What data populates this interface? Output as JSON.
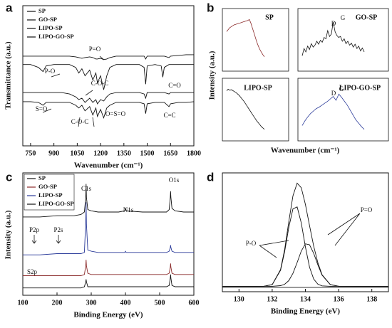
{
  "chart_data": [
    {
      "type": "line",
      "label": "a",
      "ylabel": "Transmittance (a.u.)",
      "xlabel": "Wavenumber (cm⁻¹)",
      "xlim": [
        700,
        1800
      ],
      "xticks": [
        750,
        900,
        1050,
        1200,
        1350,
        1500,
        1650,
        1800
      ],
      "ylim": [
        0,
        100
      ],
      "x": [
        700,
        750,
        800,
        830,
        850,
        900,
        950,
        1000,
        1040,
        1060,
        1080,
        1100,
        1130,
        1150,
        1170,
        1180,
        1200,
        1220,
        1240,
        1260,
        1300,
        1350,
        1400,
        1450,
        1480,
        1490,
        1500,
        1550,
        1590,
        1600,
        1610,
        1640,
        1650,
        1700,
        1750,
        1800
      ],
      "series": [
        {
          "name": "SP",
          "color": "#111111",
          "values": [
            64,
            64,
            64,
            64,
            64,
            64,
            64,
            64,
            63.5,
            63,
            62.5,
            63,
            63.5,
            63,
            62,
            62,
            62.5,
            61.5,
            62,
            63,
            64,
            64,
            64,
            64,
            64,
            62,
            64,
            64,
            64,
            64,
            64,
            63,
            64,
            64.5,
            65,
            65
          ]
        },
        {
          "name": "GO-SP",
          "color": "#111111",
          "values": [
            58,
            58,
            56,
            53,
            57,
            58,
            58,
            58,
            56,
            52,
            55,
            50,
            54,
            47,
            52,
            45,
            50,
            40,
            50,
            56,
            58,
            58,
            58,
            58,
            56,
            44,
            57,
            58,
            57,
            49,
            56,
            58,
            58,
            58,
            58,
            58
          ]
        },
        {
          "name": "LIPO-SP",
          "color": "#111111",
          "values": [
            38,
            38,
            38,
            38,
            38,
            38,
            38,
            37,
            35,
            33,
            34,
            31,
            34,
            31,
            33,
            30,
            33,
            32,
            35,
            37,
            38,
            38,
            38,
            38,
            37,
            34,
            38,
            38,
            38,
            38,
            38,
            37,
            38,
            38,
            38,
            38
          ]
        },
        {
          "name": "LIPO-GO-SP",
          "color": "#111111",
          "values": [
            31.5,
            31.5,
            31,
            29,
            31,
            31,
            31,
            31,
            29,
            27,
            29,
            25,
            28,
            22,
            27,
            21,
            26,
            20,
            27,
            29,
            31,
            31,
            31,
            31,
            30,
            23,
            30,
            31,
            31,
            31,
            31,
            28,
            30,
            31,
            31,
            31.5
          ]
        }
      ],
      "annotations": [
        "P=O",
        "P-O",
        "C-O-C",
        "C=O",
        "S=O",
        "C-O-C",
        "O=S=O",
        "C=C"
      ]
    },
    {
      "type": "line",
      "label": "b",
      "ylabel": "Intensity (a.u.)",
      "xlabel": "Wavenumber (cm⁻¹)",
      "ylim": [
        0,
        100
      ],
      "series": [
        {
          "name": "SP",
          "color": "#8b2a2a",
          "values": [
            70,
            74,
            78,
            80,
            82,
            84,
            85,
            86,
            87,
            88,
            89,
            90,
            91,
            92,
            93,
            95,
            88,
            78,
            68,
            58,
            48,
            40,
            33,
            27,
            22,
            18
          ]
        },
        {
          "name": "GO-SP",
          "color": "#111111",
          "values": [
            20,
            35,
            28,
            40,
            33,
            45,
            38,
            42,
            50,
            44,
            52,
            48,
            58,
            55,
            72,
            60,
            65,
            90,
            70,
            62,
            58,
            60,
            50,
            55,
            45,
            50,
            42,
            46,
            38,
            44,
            35,
            40,
            30,
            36,
            28
          ]
        },
        {
          "name": "LIPO-SP",
          "color": "#111111",
          "values": [
            92,
            95,
            93,
            94,
            92,
            90,
            88,
            85,
            82,
            78,
            74,
            70,
            65,
            60,
            55,
            50,
            45,
            40,
            35,
            30,
            26,
            22,
            18,
            15,
            12
          ]
        },
        {
          "name": "LIPO-GO-SP",
          "color": "#2a3a99",
          "values": [
            20,
            30,
            38,
            45,
            50,
            55,
            58,
            62,
            66,
            70,
            75,
            80,
            72,
            85,
            78,
            70,
            62,
            52,
            42,
            32,
            25,
            18,
            12
          ]
        }
      ],
      "annotations": [
        "D",
        "G",
        "D",
        "G"
      ]
    },
    {
      "type": "line",
      "label": "c",
      "ylabel": "Intensity (a.u.)",
      "xlabel": "Binding Energy (eV)",
      "xlim": [
        100,
        600
      ],
      "xticks": [
        100,
        200,
        300,
        400,
        500,
        600
      ],
      "ylim": [
        0,
        100
      ],
      "x": [
        100,
        150,
        200,
        250,
        270,
        280,
        284,
        285,
        286,
        290,
        300,
        320,
        380,
        398,
        400,
        402,
        450,
        500,
        520,
        528,
        531,
        532,
        533,
        536,
        545,
        570,
        600
      ],
      "series": [
        {
          "name": "SP",
          "color": "#111111",
          "values": [
            6,
            6,
            6,
            6,
            6,
            7,
            11,
            13,
            11,
            7,
            7,
            7,
            7,
            7,
            7,
            7,
            7,
            7,
            7,
            8,
            14,
            17,
            14,
            8,
            7,
            7,
            7
          ]
        },
        {
          "name": "GO-SP",
          "color": "#8b2a2a",
          "values": [
            16,
            16,
            16,
            16,
            16,
            17,
            24,
            29,
            24,
            18,
            17,
            17,
            17,
            17,
            17,
            17,
            17,
            17,
            17,
            18,
            23,
            26,
            23,
            18,
            17,
            17,
            17
          ]
        },
        {
          "name": "LIPO-SP",
          "color": "#2a3a99",
          "values": [
            33,
            33,
            34,
            34,
            34,
            35,
            60,
            76,
            58,
            37,
            36,
            35,
            35,
            35,
            36,
            35,
            35,
            35,
            35,
            36,
            39,
            41,
            39,
            36,
            35,
            35,
            35
          ]
        },
        {
          "name": "LIPO-GO-SP",
          "color": "#111111",
          "values": [
            64,
            64,
            65,
            65,
            66,
            68,
            80,
            91,
            80,
            70,
            69,
            68,
            68,
            69,
            71,
            69,
            68,
            68,
            68,
            70,
            80,
            85,
            80,
            71,
            69,
            68,
            68
          ]
        }
      ],
      "annotations": [
        "C1s",
        "N1s",
        "O1s",
        "P2p",
        "P2s",
        "S2p"
      ]
    },
    {
      "type": "line",
      "label": "d",
      "xlabel": "Binding Energy (eV)",
      "xlim": [
        129,
        139
      ],
      "xticks": [
        130,
        132,
        134,
        136,
        138
      ],
      "ylim": [
        0,
        110
      ],
      "x": [
        129,
        130,
        131,
        131.5,
        132,
        132.5,
        132.75,
        133,
        133.25,
        133.5,
        133.75,
        134,
        134.25,
        134.5,
        134.75,
        135,
        135.5,
        136,
        137,
        138,
        139
      ],
      "series": [
        {
          "color": "#111111",
          "values": [
            5,
            5,
            5,
            5.1,
            6.5,
            20.4,
            39.1,
            64.8,
            88.7,
            100.5,
            96.3,
            80.8,
            61.2,
            42.3,
            26.8,
            15.8,
            6.5,
            5.1,
            5,
            5,
            5
          ]
        },
        {
          "color": "#111111",
          "values": [
            5,
            5,
            5,
            5.1,
            6.5,
            19.8,
            37.2,
            59.5,
            76.7,
            78.5,
            63.7,
            41.5,
            22.7,
            11.7,
            7,
            5.4,
            5,
            5,
            5,
            5,
            5
          ]
        },
        {
          "color": "#111111",
          "values": [
            5,
            5,
            5,
            5,
            5,
            5.6,
            6.9,
            10.3,
            17,
            27,
            37.6,
            44.3,
            43.5,
            35.6,
            24.8,
            15.4,
            6.5,
            5.1,
            5,
            5,
            5
          ]
        },
        {
          "color": "#111111",
          "values": [
            4,
            4,
            4,
            4,
            4,
            4,
            4,
            4,
            4,
            4,
            4,
            4,
            4,
            4,
            4,
            4,
            4,
            4,
            4,
            4,
            4
          ]
        }
      ],
      "annotations": [
        "P-O",
        "P=O"
      ]
    }
  ]
}
